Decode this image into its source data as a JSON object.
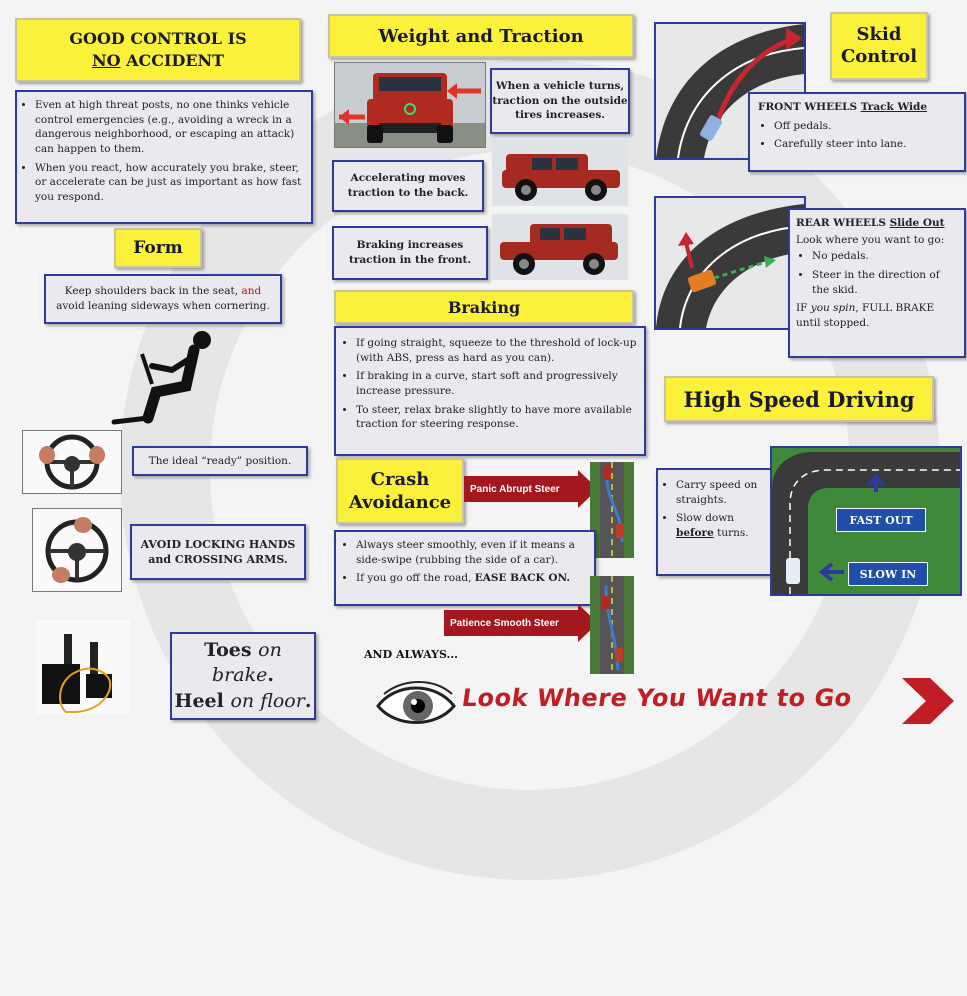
{
  "good_control": {
    "title_line1": "GOOD CONTROL IS",
    "title_no": "NO",
    "title_rest": " ACCIDENT",
    "bullets": [
      "Even at high threat posts, no one thinks vehicle control emergencies (e.g., avoiding a wreck in a dangerous neighborhood, or escaping an attack) can happen to them.",
      "When you react, how accurately you brake, steer, or accelerate can be just as important as how fast you respond."
    ]
  },
  "form": {
    "title": "Form",
    "text_before": "Keep shoulders back in the seat, ",
    "text_and": "and",
    "text_after": " avoid leaning sideways when cornering."
  },
  "wheel": {
    "ready": "The ideal “ready” position.",
    "avoid": "AVOID LOCKING HANDS and CROSSING ARMS."
  },
  "feet": {
    "line1_a": "Toes ",
    "line1_b": "on brake",
    "line1_c": ".",
    "line2_a": "Heel ",
    "line2_b": "on floor",
    "line2_c": "."
  },
  "weight": {
    "title": "Weight and Traction",
    "turns": "When a vehicle turns, traction on the outside tires increases.",
    "accel": "Accelerating moves traction to the back.",
    "brake": "Braking increases traction in the front."
  },
  "braking": {
    "title": "Braking",
    "bullets": [
      "If going straight, squeeze to the threshold of lock-up (with ABS, press as hard as you can).",
      "If braking in a curve, start soft and progressively increase pressure.",
      "To steer, relax brake slightly to have more available traction for steering response."
    ]
  },
  "crash": {
    "title_line1": "Crash",
    "title_line2": "Avoidance",
    "panic": "Panic Abrupt Steer",
    "patience": "Patience Smooth Steer",
    "bullet1": "Always steer smoothly, even if it means a side-swipe (rubbing the side of a car).",
    "bullet2_a": "If you go off the road, ",
    "bullet2_b": "EASE BACK ON.",
    "and_always": "AND ALWAYS...",
    "look": "Look Where You Want to Go"
  },
  "skid": {
    "title_line1": "Skid",
    "title_line2": "Control",
    "front_label": "FRONT WHEELS ",
    "front_label_u": "Track Wide",
    "front_bullets": [
      "Off pedals.",
      "Carefully steer into lane."
    ],
    "rear_label": "REAR WHEELS ",
    "rear_label_u": "Slide Out",
    "rear_intro": "Look where you want to go:",
    "rear_bullets": [
      "No pedals.",
      "Steer in the direction of the skid."
    ],
    "rear_spin_a": "IF ",
    "rear_spin_b": "you spin",
    "rear_spin_c": ", FULL BRAKE until stopped."
  },
  "high_speed": {
    "title": "High Speed Driving",
    "bullet1": "Carry speed on straights.",
    "bullet2_a": "Slow down ",
    "bullet2_b": "before",
    "bullet2_c": " turns.",
    "fast_out": "FAST OUT",
    "slow_in": "SLOW IN"
  }
}
